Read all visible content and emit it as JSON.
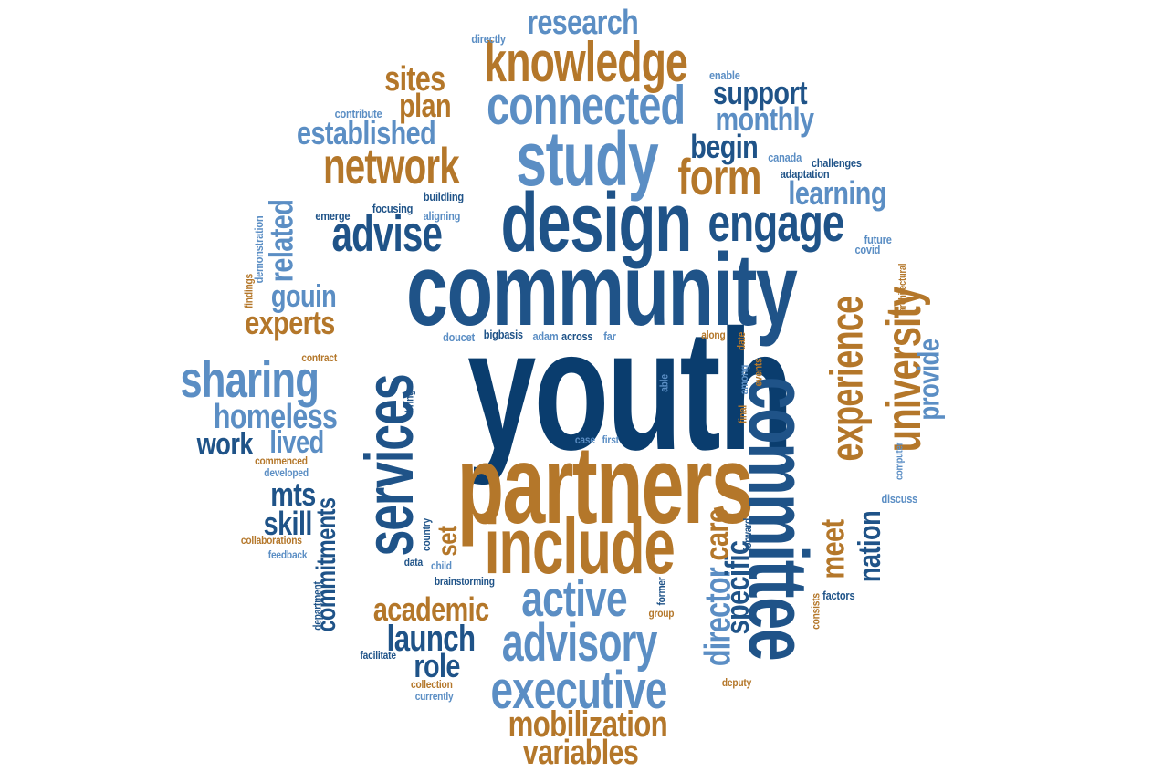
{
  "words": {
    "youth": "youth",
    "community": "community",
    "partners": "partners",
    "committee": "committee",
    "services": "services",
    "design": "design",
    "include": "include",
    "study": "study",
    "knowledge": "knowledge",
    "connected": "connected",
    "engage": "engage",
    "advise": "advise",
    "network": "network",
    "executive": "executive",
    "advisory": "advisory",
    "active": "active",
    "university": "university",
    "experience": "experience",
    "sharing": "sharing",
    "form": "form",
    "research": "research",
    "mobilization": "mobilization",
    "variables": "variables",
    "established": "established",
    "homeless": "homeless",
    "director": "director",
    "academic": "academic",
    "launch": "launch",
    "support": "support",
    "monthly": "monthly",
    "learning": "learning",
    "begin": "begin",
    "sites": "sites",
    "plan": "plan",
    "related": "related",
    "gouin": "gouin",
    "experts": "experts",
    "lived": "lived",
    "work": "work",
    "mts": "mts",
    "skill": "skill",
    "commitments": "commitments",
    "role": "role",
    "specific": "specific",
    "care": "care",
    "meet": "meet",
    "nation": "nation",
    "provide": "provide",
    "set": "set",
    "directly": "directly",
    "enable": "enable",
    "contribute": "contribute",
    "canada": "canada",
    "challenges": "challenges",
    "adaptation": "adaptation",
    "buildling": "buildling",
    "focusing": "focusing",
    "aligning": "aligning",
    "emerge": "emerge",
    "demonstration": "demonstration",
    "future": "future",
    "covid": "covid",
    "architectural": "architectural",
    "findings": "findings",
    "doucet": "doucet",
    "bigbasis": "bigbasis",
    "adam": "adam",
    "across": "across",
    "far": "far",
    "along": "along",
    "date": "date",
    "among": "among",
    "events": "events",
    "final": "final",
    "able": "able",
    "contract": "contract",
    "bring": "bring",
    "case": "case",
    "first": "first",
    "commenced": "commenced",
    "developed": "developed",
    "computer": "computer",
    "discuss": "discuss",
    "collaborations": "collaborations",
    "feedback": "feedback",
    "country": "country",
    "data": "data",
    "child": "child",
    "forward": "forward",
    "brainstorming": "brainstorming",
    "department": "department",
    "facilitate": "facilitate",
    "former": "former",
    "group": "group",
    "consists": "consists",
    "factors": "factors",
    "collection": "collection",
    "currently": "currently",
    "deputy": "deputy"
  }
}
